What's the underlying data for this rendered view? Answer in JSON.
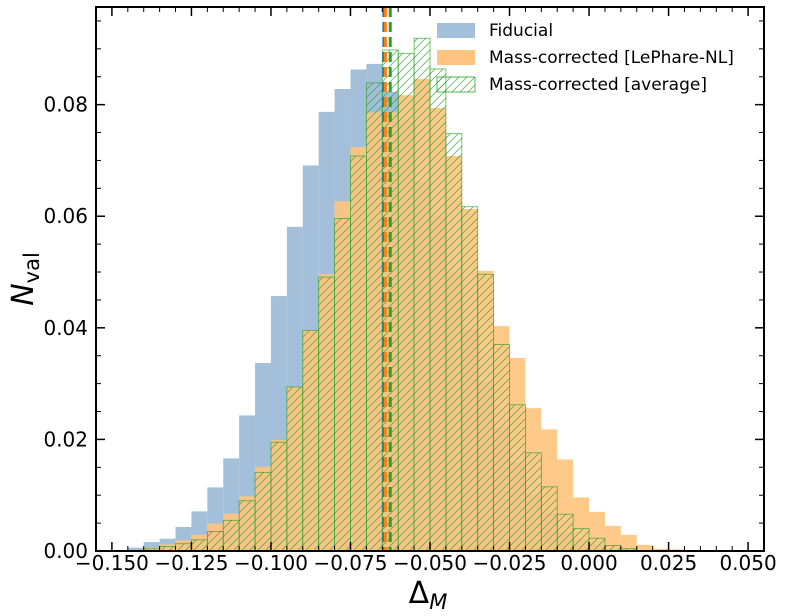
{
  "chart_data": {
    "type": "histogram",
    "title": "",
    "xlabel": "Δ",
    "xlabel_sub": "M",
    "ylabel": "N",
    "ylabel_sub": "val",
    "xlim": [
      -0.155,
      0.055
    ],
    "ylim": [
      0.0,
      0.0975
    ],
    "bin_width": 0.005,
    "bin_start": -0.15,
    "xticks": [
      -0.15,
      -0.125,
      -0.1,
      -0.075,
      -0.05,
      -0.025,
      0.0,
      0.025,
      0.05
    ],
    "xtick_labels": [
      "−0.150",
      "−0.125",
      "−0.100",
      "−0.075",
      "−0.050",
      "−0.025",
      "0.000",
      "0.025",
      "0.050"
    ],
    "yticks": [
      0.0,
      0.02,
      0.04,
      0.06,
      0.08
    ],
    "ytick_labels": [
      "0.00",
      "0.02",
      "0.04",
      "0.06",
      "0.08"
    ],
    "grid": false,
    "legend_position": "top-right",
    "series": [
      {
        "name": "Fiducial",
        "style": "filled",
        "color": "#a3bfd9",
        "mean_line_color": "#1f77b4",
        "mean": -0.0645,
        "values": [
          0.0,
          0.0006,
          0.0016,
          0.0022,
          0.0043,
          0.0071,
          0.0114,
          0.0166,
          0.0243,
          0.0337,
          0.0457,
          0.0581,
          0.0691,
          0.0787,
          0.0828,
          0.0863,
          0.0873,
          0.0823,
          0.0772,
          0.0662,
          0.06,
          0.05,
          0.0398,
          0.0304,
          0.0222,
          0.0159,
          0.0101,
          0.0068,
          0.0034,
          0.0022,
          0.0012,
          0.0005,
          0.0002,
          0.0,
          0.0,
          0.0,
          0.0,
          0.0,
          0.0,
          0.0,
          0.0
        ]
      },
      {
        "name": "Mass-corrected [LePhare-NL]",
        "style": "filled",
        "color": "#ffc47f",
        "mean_line_color": "#ff7f0e",
        "mean": -0.0645,
        "values": [
          0.0,
          0.0001,
          0.0006,
          0.0012,
          0.0019,
          0.0029,
          0.0049,
          0.0067,
          0.0098,
          0.0151,
          0.0199,
          0.0294,
          0.0396,
          0.0496,
          0.0627,
          0.0724,
          0.0786,
          0.0786,
          0.0817,
          0.0846,
          0.0794,
          0.0708,
          0.0613,
          0.0502,
          0.0403,
          0.0346,
          0.0256,
          0.0218,
          0.0164,
          0.0096,
          0.007,
          0.0045,
          0.0029,
          0.0011,
          0.0004,
          0.0003,
          0.0001,
          0.0001,
          0.0,
          0.0,
          0.0
        ]
      },
      {
        "name": "Mass-corrected [average]",
        "style": "hatched",
        "color": "#2ca02c",
        "mean_line_color": "#2ca02c",
        "mean": -0.0625,
        "values": [
          0.0,
          0.0001,
          0.0004,
          0.0008,
          0.0013,
          0.002,
          0.0035,
          0.0055,
          0.009,
          0.0141,
          0.0195,
          0.0294,
          0.0395,
          0.0491,
          0.0596,
          0.0708,
          0.0839,
          0.0898,
          0.0892,
          0.0919,
          0.0864,
          0.0748,
          0.0617,
          0.0496,
          0.037,
          0.0262,
          0.0176,
          0.0115,
          0.0066,
          0.004,
          0.0023,
          0.001,
          0.0004,
          0.0001,
          0.0001,
          0.0,
          0.0,
          0.0,
          0.0,
          0.0,
          0.0
        ]
      }
    ]
  }
}
